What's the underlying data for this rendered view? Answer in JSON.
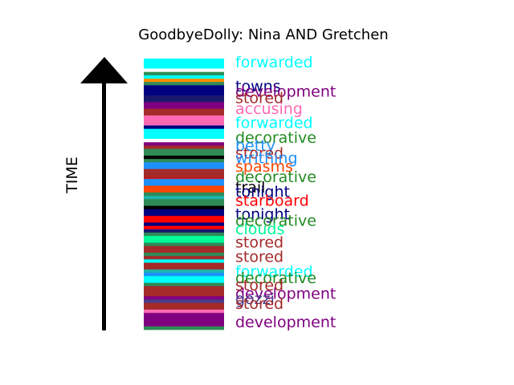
{
  "chart_data": {
    "type": "timeline-stripe",
    "title": "GoodbyeDolly: Nina AND Gretchen",
    "ylabel": "TIME",
    "arrow": "upward",
    "bands": [
      {
        "color": "#00ffff",
        "weight": 3
      },
      {
        "color": "#ffffff",
        "weight": 1
      },
      {
        "color": "#2e8b57",
        "weight": 1
      },
      {
        "color": "#00ffff",
        "weight": 1
      },
      {
        "color": "#ff8c00",
        "weight": 1
      },
      {
        "color": "#2e8b57",
        "weight": 1
      },
      {
        "color": "#000080",
        "weight": 3
      },
      {
        "color": "#191970",
        "weight": 2
      },
      {
        "color": "#800080",
        "weight": 2
      },
      {
        "color": "#a52a2a",
        "weight": 2
      },
      {
        "color": "#ff69b4",
        "weight": 3
      },
      {
        "color": "#000080",
        "weight": 1
      },
      {
        "color": "#00ffff",
        "weight": 3
      },
      {
        "color": "#ffffff",
        "weight": 1
      },
      {
        "color": "#800080",
        "weight": 1
      },
      {
        "color": "#a52a2a",
        "weight": 1
      },
      {
        "color": "#2e8b57",
        "weight": 2
      },
      {
        "color": "#000000",
        "weight": 1
      },
      {
        "color": "#2e8b57",
        "weight": 1
      },
      {
        "color": "#1e90ff",
        "weight": 2
      },
      {
        "color": "#a52a2a",
        "weight": 2
      },
      {
        "color": "#b22222",
        "weight": 1
      },
      {
        "color": "#1e90ff",
        "weight": 2
      },
      {
        "color": "#ff4500",
        "weight": 2
      },
      {
        "color": "#2e8b57",
        "weight": 1
      },
      {
        "color": "#20b2aa",
        "weight": 1
      },
      {
        "color": "#2e8b57",
        "weight": 2
      },
      {
        "color": "#000000",
        "weight": 1
      },
      {
        "color": "#000080",
        "weight": 2
      },
      {
        "color": "#ff0000",
        "weight": 2
      },
      {
        "color": "#000080",
        "weight": 1
      },
      {
        "color": "#ff0000",
        "weight": 1
      },
      {
        "color": "#191970",
        "weight": 1
      },
      {
        "color": "#2e8b57",
        "weight": 1
      },
      {
        "color": "#00fa9a",
        "weight": 2
      },
      {
        "color": "#2e8b57",
        "weight": 1
      },
      {
        "color": "#a52a2a",
        "weight": 2
      },
      {
        "color": "#2e8b57",
        "weight": 1
      },
      {
        "color": "#a52a2a",
        "weight": 1
      },
      {
        "color": "#00ffff",
        "weight": 1
      },
      {
        "color": "#a52a2a",
        "weight": 2
      },
      {
        "color": "#20b2aa",
        "weight": 1
      },
      {
        "color": "#1e90ff",
        "weight": 1
      },
      {
        "color": "#00ffff",
        "weight": 2
      },
      {
        "color": "#2e8b57",
        "weight": 1
      },
      {
        "color": "#a52a2a",
        "weight": 3
      },
      {
        "color": "#800080",
        "weight": 1
      },
      {
        "color": "#483d8b",
        "weight": 1
      },
      {
        "color": "#a52a2a",
        "weight": 2
      },
      {
        "color": "#ff69b4",
        "weight": 1
      },
      {
        "color": "#800080",
        "weight": 4
      },
      {
        "color": "#2e8b57",
        "weight": 1
      }
    ],
    "labels": [
      {
        "text": "forwarded",
        "color": "#00ffff",
        "pos": 0.012
      },
      {
        "text": "towns",
        "color": "#000080",
        "pos": 0.1
      },
      {
        "text": "development",
        "color": "#800080",
        "pos": 0.12
      },
      {
        "text": "stored",
        "color": "#a52a2a",
        "pos": 0.143
      },
      {
        "text": "accusing",
        "color": "#ff69b4",
        "pos": 0.184
      },
      {
        "text": "forwarded",
        "color": "#00ffff",
        "pos": 0.235
      },
      {
        "text": "decorative",
        "color": "#228b22",
        "pos": 0.29
      },
      {
        "text": "betty",
        "color": "#1e90ff",
        "pos": 0.32
      },
      {
        "text": "stored",
        "color": "#a52a2a",
        "pos": 0.348
      },
      {
        "text": "writhing",
        "color": "#1e90ff",
        "pos": 0.365
      },
      {
        "text": "spasms",
        "color": "#ff4500",
        "pos": 0.396
      },
      {
        "text": "decorative",
        "color": "#228b22",
        "pos": 0.435
      },
      {
        "text": "trail",
        "color": "#000000",
        "pos": 0.474
      },
      {
        "text": "tonight",
        "color": "#000080",
        "pos": 0.49
      },
      {
        "text": "starboard",
        "color": "#ff0000",
        "pos": 0.522
      },
      {
        "text": "tonight",
        "color": "#000080",
        "pos": 0.573
      },
      {
        "text": "decorative",
        "color": "#228b22",
        "pos": 0.596
      },
      {
        "text": "clouds",
        "color": "#00fa9a",
        "pos": 0.627
      },
      {
        "text": "stored",
        "color": "#a52a2a",
        "pos": 0.676
      },
      {
        "text": "stored",
        "color": "#a52a2a",
        "pos": 0.73
      },
      {
        "text": "forwarded",
        "color": "#00ffff",
        "pos": 0.784
      },
      {
        "text": "decorative",
        "color": "#228b22",
        "pos": 0.807
      },
      {
        "text": "stored",
        "color": "#a52a2a",
        "pos": 0.835
      },
      {
        "text": "development",
        "color": "#800080",
        "pos": 0.865
      },
      {
        "text": "gozzi",
        "color": "#483d8b",
        "pos": 0.885
      },
      {
        "text": "stored",
        "color": "#a52a2a",
        "pos": 0.902
      },
      {
        "text": "development",
        "color": "#800080",
        "pos": 0.97
      }
    ]
  }
}
